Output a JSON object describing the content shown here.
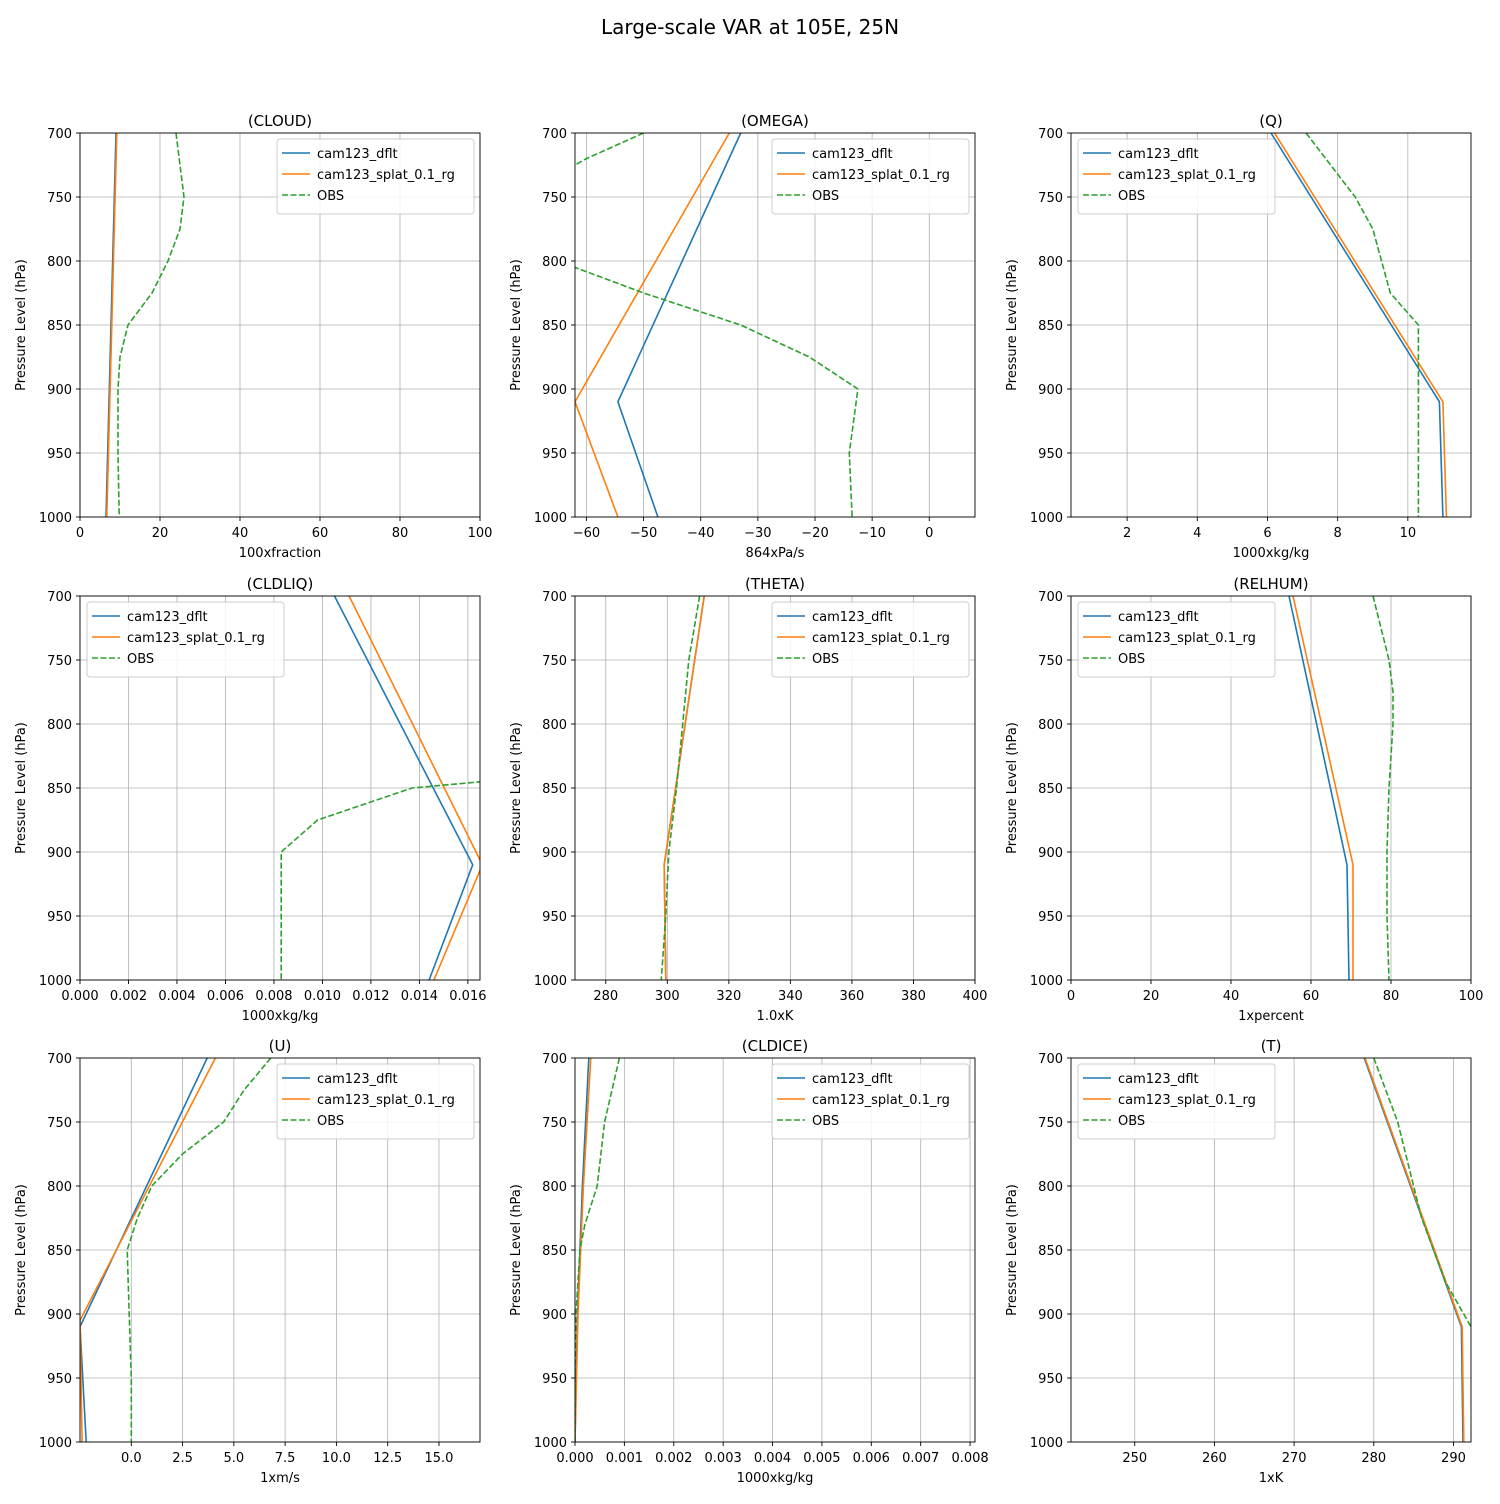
{
  "figure_title": "Large-scale VAR at 105E, 25N",
  "colors": {
    "cam123_dflt": "#1f77b4",
    "cam123_splat_0.1_rg": "#ff7f0e",
    "OBS": "#2ca02c",
    "grid": "#b0b0b0"
  },
  "chart_data": [
    {
      "type": "line",
      "title": "(CLOUD)",
      "xlabel": "100xfraction",
      "ylabel": "Pressure Level (hPa)",
      "xlim": [
        0,
        100
      ],
      "ylim": [
        1000,
        700
      ],
      "y_inverted": true,
      "xticks": [
        0,
        20,
        40,
        60,
        80,
        100
      ],
      "xtick_labels": [
        "0",
        "20",
        "40",
        "60",
        "80",
        "100"
      ],
      "yticks": [
        700,
        750,
        800,
        850,
        900,
        950,
        1000
      ],
      "ytick_labels": [
        "700",
        "750",
        "800",
        "850",
        "900",
        "950",
        "1000"
      ],
      "grid": true,
      "legend": "upper right",
      "series": [
        {
          "name": "cam123_dflt",
          "style": "solid",
          "points": [
            [
              9.0,
              700
            ],
            [
              6.5,
              1000
            ]
          ]
        },
        {
          "name": "cam123_splat_0.1_rg",
          "style": "solid",
          "points": [
            [
              9.2,
              700
            ],
            [
              6.7,
              1000
            ]
          ]
        },
        {
          "name": "OBS",
          "style": "dashed",
          "points": [
            [
              24,
              700
            ],
            [
              26,
              750
            ],
            [
              25,
              775
            ],
            [
              22,
              800
            ],
            [
              18,
              825
            ],
            [
              12,
              850
            ],
            [
              10,
              875
            ],
            [
              9.5,
              900
            ],
            [
              9.5,
              950
            ],
            [
              9.8,
              1000
            ]
          ]
        }
      ]
    },
    {
      "type": "line",
      "title": "(OMEGA)",
      "xlabel": "864xPa/s",
      "ylabel": "Pressure Level (hPa)",
      "xlim": [
        -62,
        8
      ],
      "ylim": [
        1000,
        700
      ],
      "y_inverted": true,
      "xticks": [
        -60,
        -50,
        -40,
        -30,
        -20,
        -10,
        0
      ],
      "xtick_labels": [
        "−60",
        "−50",
        "−40",
        "−30",
        "−20",
        "−10",
        "0"
      ],
      "yticks": [
        700,
        750,
        800,
        850,
        900,
        950,
        1000
      ],
      "ytick_labels": [
        "700",
        "750",
        "800",
        "850",
        "900",
        "950",
        "1000"
      ],
      "grid": true,
      "legend": "upper right",
      "series": [
        {
          "name": "cam123_dflt",
          "style": "solid",
          "points": [
            [
              -33,
              700
            ],
            [
              -54.5,
              910
            ],
            [
              -47.5,
              1000
            ]
          ]
        },
        {
          "name": "cam123_splat_0.1_rg",
          "style": "solid",
          "points": [
            [
              -35,
              700
            ],
            [
              -62,
              910
            ],
            [
              -54.5,
              1000
            ]
          ]
        },
        {
          "name": "OBS",
          "style": "dashed",
          "points": [
            [
              -50,
              700
            ],
            [
              -60,
              720
            ],
            [
              -64,
              730
            ],
            [
              -64,
              795
            ],
            [
              -62,
              805
            ],
            [
              -50,
              825
            ],
            [
              -33,
              850
            ],
            [
              -21,
              875
            ],
            [
              -12.5,
              900
            ],
            [
              -14,
              950
            ],
            [
              -13.5,
              1000
            ]
          ]
        }
      ]
    },
    {
      "type": "line",
      "title": "(Q)",
      "xlabel": "1000xkg/kg",
      "ylabel": "Pressure Level (hPa)",
      "xlim": [
        0.4,
        11.8
      ],
      "ylim": [
        1000,
        700
      ],
      "y_inverted": true,
      "xticks": [
        2,
        4,
        6,
        8,
        10
      ],
      "xtick_labels": [
        "2",
        "4",
        "6",
        "8",
        "10"
      ],
      "yticks": [
        700,
        750,
        800,
        850,
        900,
        950,
        1000
      ],
      "ytick_labels": [
        "700",
        "750",
        "800",
        "850",
        "900",
        "950",
        "1000"
      ],
      "grid": true,
      "legend": "upper left",
      "series": [
        {
          "name": "cam123_dflt",
          "style": "solid",
          "points": [
            [
              6.1,
              700
            ],
            [
              10.9,
              910
            ],
            [
              11.0,
              1000
            ]
          ]
        },
        {
          "name": "cam123_splat_0.1_rg",
          "style": "solid",
          "points": [
            [
              6.2,
              700
            ],
            [
              11.0,
              910
            ],
            [
              11.1,
              1000
            ]
          ]
        },
        {
          "name": "OBS",
          "style": "dashed",
          "points": [
            [
              7.1,
              700
            ],
            [
              8.5,
              750
            ],
            [
              9.0,
              775
            ],
            [
              9.5,
              825
            ],
            [
              10.3,
              850
            ],
            [
              10.3,
              900
            ],
            [
              10.3,
              1000
            ]
          ]
        }
      ]
    },
    {
      "type": "line",
      "title": "(CLDLIQ)",
      "xlabel": "1000xkg/kg",
      "ylabel": "Pressure Level (hPa)",
      "xlim": [
        0,
        0.0165
      ],
      "ylim": [
        1000,
        700
      ],
      "y_inverted": true,
      "xticks": [
        0,
        0.002,
        0.004,
        0.006,
        0.008,
        0.01,
        0.012,
        0.014,
        0.016
      ],
      "xtick_labels": [
        "0.000",
        "0.002",
        "0.004",
        "0.006",
        "0.008",
        "0.010",
        "0.012",
        "0.014",
        "0.016"
      ],
      "yticks": [
        700,
        750,
        800,
        850,
        900,
        950,
        1000
      ],
      "ytick_labels": [
        "700",
        "750",
        "800",
        "850",
        "900",
        "950",
        "1000"
      ],
      "grid": true,
      "legend": "upper left",
      "series": [
        {
          "name": "cam123_dflt",
          "style": "solid",
          "points": [
            [
              0.0105,
              700
            ],
            [
              0.0162,
              910
            ],
            [
              0.0144,
              1000
            ]
          ]
        },
        {
          "name": "cam123_splat_0.1_rg",
          "style": "solid",
          "points": [
            [
              0.0111,
              700
            ],
            [
              0.0166,
              910
            ],
            [
              0.0146,
              1000
            ]
          ]
        },
        {
          "name": "OBS",
          "style": "dashed",
          "points": [
            [
              0.0166,
              845
            ],
            [
              0.0137,
              850
            ],
            [
              0.0098,
              875
            ],
            [
              0.0083,
              900
            ],
            [
              0.0083,
              1000
            ]
          ]
        }
      ]
    },
    {
      "type": "line",
      "title": "(THETA)",
      "xlabel": "1.0xK",
      "ylabel": "Pressure Level (hPa)",
      "xlim": [
        270,
        400
      ],
      "ylim": [
        1000,
        700
      ],
      "y_inverted": true,
      "xticks": [
        280,
        300,
        320,
        340,
        360,
        380,
        400
      ],
      "xtick_labels": [
        "280",
        "300",
        "320",
        "340",
        "360",
        "380",
        "400"
      ],
      "yticks": [
        700,
        750,
        800,
        850,
        900,
        950,
        1000
      ],
      "ytick_labels": [
        "700",
        "750",
        "800",
        "850",
        "900",
        "950",
        "1000"
      ],
      "grid": true,
      "legend": "upper right",
      "series": [
        {
          "name": "cam123_dflt",
          "style": "solid",
          "points": [
            [
              312,
              700
            ],
            [
              299,
              910
            ],
            [
              299.5,
              1000
            ]
          ]
        },
        {
          "name": "cam123_splat_0.1_rg",
          "style": "solid",
          "points": [
            [
              312,
              700
            ],
            [
              299,
              910
            ],
            [
              299.5,
              1000
            ]
          ]
        },
        {
          "name": "OBS",
          "style": "dashed",
          "points": [
            [
              310.5,
              700
            ],
            [
              307,
              750
            ],
            [
              305,
              800
            ],
            [
              303,
              850
            ],
            [
              300.5,
              900
            ],
            [
              299.5,
              950
            ],
            [
              298,
              1000
            ]
          ]
        }
      ]
    },
    {
      "type": "line",
      "title": "(RELHUM)",
      "xlabel": "1xpercent",
      "ylabel": "Pressure Level (hPa)",
      "xlim": [
        0,
        100
      ],
      "ylim": [
        1000,
        700
      ],
      "y_inverted": true,
      "xticks": [
        0,
        20,
        40,
        60,
        80,
        100
      ],
      "xtick_labels": [
        "0",
        "20",
        "40",
        "60",
        "80",
        "100"
      ],
      "yticks": [
        700,
        750,
        800,
        850,
        900,
        950,
        1000
      ],
      "ytick_labels": [
        "700",
        "750",
        "800",
        "850",
        "900",
        "950",
        "1000"
      ],
      "grid": true,
      "legend": "upper left",
      "series": [
        {
          "name": "cam123_dflt",
          "style": "solid",
          "points": [
            [
              54.5,
              700
            ],
            [
              69,
              910
            ],
            [
              69.5,
              1000
            ]
          ]
        },
        {
          "name": "cam123_splat_0.1_rg",
          "style": "solid",
          "points": [
            [
              55.5,
              700
            ],
            [
              70.5,
              910
            ],
            [
              70.5,
              1000
            ]
          ]
        },
        {
          "name": "OBS",
          "style": "dashed",
          "points": [
            [
              75.5,
              700
            ],
            [
              79.5,
              750
            ],
            [
              80.5,
              775
            ],
            [
              80.5,
              800
            ],
            [
              79.5,
              850
            ],
            [
              79,
              900
            ],
            [
              79,
              950
            ],
            [
              79.5,
              1000
            ]
          ]
        }
      ]
    },
    {
      "type": "line",
      "title": "(U)",
      "xlabel": "1xm/s",
      "ylabel": "Pressure Level (hPa)",
      "xlim": [
        -2.5,
        17
      ],
      "ylim": [
        1000,
        700
      ],
      "y_inverted": true,
      "xticks": [
        0,
        2.5,
        5,
        7.5,
        10,
        12.5,
        15
      ],
      "xtick_labels": [
        "0.0",
        "2.5",
        "5.0",
        "7.5",
        "10.0",
        "12.5",
        "15.0"
      ],
      "yticks": [
        700,
        750,
        800,
        850,
        900,
        950,
        1000
      ],
      "ytick_labels": [
        "700",
        "750",
        "800",
        "850",
        "900",
        "950",
        "1000"
      ],
      "grid": true,
      "legend": "upper right",
      "series": [
        {
          "name": "cam123_dflt",
          "style": "solid",
          "points": [
            [
              3.7,
              700
            ],
            [
              -2.5,
              910
            ],
            [
              -2.2,
              1000
            ]
          ]
        },
        {
          "name": "cam123_splat_0.1_rg",
          "style": "solid",
          "points": [
            [
              4.1,
              700
            ],
            [
              -2.5,
              905
            ],
            [
              -2.4,
              1000
            ]
          ]
        },
        {
          "name": "OBS",
          "style": "dashed",
          "points": [
            [
              6.8,
              700
            ],
            [
              5.5,
              725
            ],
            [
              4.5,
              750
            ],
            [
              2.5,
              775
            ],
            [
              1.0,
              800
            ],
            [
              0.3,
              825
            ],
            [
              -0.2,
              850
            ],
            [
              -0.1,
              900
            ],
            [
              0,
              950
            ],
            [
              0,
              1000
            ]
          ]
        }
      ]
    },
    {
      "type": "line",
      "title": "(CLDICE)",
      "xlabel": "1000xkg/kg",
      "ylabel": "Pressure Level (hPa)",
      "xlim": [
        0,
        0.0081
      ],
      "ylim": [
        1000,
        700
      ],
      "y_inverted": true,
      "xticks": [
        0,
        0.001,
        0.002,
        0.003,
        0.004,
        0.005,
        0.006,
        0.007,
        0.008
      ],
      "xtick_labels": [
        "0.000",
        "0.001",
        "0.002",
        "0.003",
        "0.004",
        "0.005",
        "0.006",
        "0.007",
        "0.008"
      ],
      "yticks": [
        700,
        750,
        800,
        850,
        900,
        950,
        1000
      ],
      "ytick_labels": [
        "700",
        "750",
        "800",
        "850",
        "900",
        "950",
        "1000"
      ],
      "grid": true,
      "legend": "upper right",
      "series": [
        {
          "name": "cam123_dflt",
          "style": "solid",
          "points": [
            [
              0.00028,
              700
            ],
            [
              0.00015,
              800
            ],
            [
              5e-05,
              900
            ],
            [
              0,
              1000
            ]
          ]
        },
        {
          "name": "cam123_splat_0.1_rg",
          "style": "solid",
          "points": [
            [
              0.00032,
              700
            ],
            [
              0.00017,
              800
            ],
            [
              6e-05,
              900
            ],
            [
              0,
              1000
            ]
          ]
        },
        {
          "name": "OBS",
          "style": "dashed",
          "points": [
            [
              0.0009,
              700
            ],
            [
              0.0006,
              750
            ],
            [
              0.00045,
              800
            ],
            [
              0.0002,
              830
            ],
            [
              0.0001,
              850
            ],
            [
              2e-05,
              900
            ],
            [
              0,
              950
            ],
            [
              0,
              1000
            ]
          ]
        }
      ]
    },
    {
      "type": "line",
      "title": "(T)",
      "xlabel": "1xK",
      "ylabel": "Pressure Level (hPa)",
      "xlim": [
        242,
        292.2
      ],
      "ylim": [
        1000,
        700
      ],
      "y_inverted": true,
      "xticks": [
        250,
        260,
        270,
        280,
        290
      ],
      "xtick_labels": [
        "250",
        "260",
        "270",
        "280",
        "290"
      ],
      "yticks": [
        700,
        750,
        800,
        850,
        900,
        950,
        1000
      ],
      "ytick_labels": [
        "700",
        "750",
        "800",
        "850",
        "900",
        "950",
        "1000"
      ],
      "grid": true,
      "legend": "upper left",
      "series": [
        {
          "name": "cam123_dflt",
          "style": "solid",
          "points": [
            [
              278.8,
              700
            ],
            [
              291,
              910
            ],
            [
              291.2,
              1000
            ]
          ]
        },
        {
          "name": "cam123_splat_0.1_rg",
          "style": "solid",
          "points": [
            [
              278.9,
              700
            ],
            [
              291.1,
              910
            ],
            [
              291.3,
              1000
            ]
          ]
        },
        {
          "name": "OBS",
          "style": "dashed",
          "points": [
            [
              280,
              700
            ],
            [
              283,
              750
            ],
            [
              286,
              825
            ],
            [
              289,
              875
            ],
            [
              292.2,
              910
            ]
          ]
        }
      ]
    }
  ]
}
